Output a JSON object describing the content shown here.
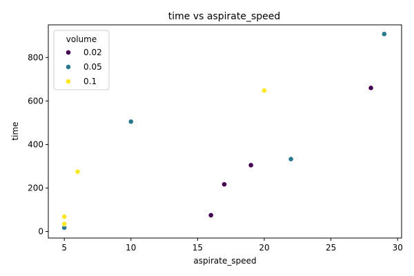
{
  "chart_data": {
    "type": "scatter",
    "title": "time vs aspirate_speed",
    "xlabel": "aspirate_speed",
    "ylabel": "time",
    "xlim": [
      3.8,
      30.3
    ],
    "ylim": [
      -30,
      950
    ],
    "xticks": [
      5,
      10,
      15,
      20,
      25,
      30
    ],
    "yticks": [
      0,
      200,
      400,
      600,
      800
    ],
    "grid": false,
    "legend": {
      "title": "volume",
      "placement": "top-left"
    },
    "series": [
      {
        "name": "0.02",
        "color": "#440154",
        "points": [
          {
            "x": 16,
            "y": 75
          },
          {
            "x": 17,
            "y": 217
          },
          {
            "x": 19,
            "y": 305
          },
          {
            "x": 28,
            "y": 660
          }
        ]
      },
      {
        "name": "0.05",
        "color": "#2a788e",
        "points": [
          {
            "x": 5,
            "y": 18
          },
          {
            "x": 10,
            "y": 505
          },
          {
            "x": 22,
            "y": 333
          },
          {
            "x": 29,
            "y": 908
          }
        ]
      },
      {
        "name": "0.1",
        "color": "#fde725",
        "points": [
          {
            "x": 5,
            "y": 35
          },
          {
            "x": 5,
            "y": 68
          },
          {
            "x": 6,
            "y": 275
          },
          {
            "x": 20,
            "y": 648
          }
        ]
      }
    ]
  }
}
